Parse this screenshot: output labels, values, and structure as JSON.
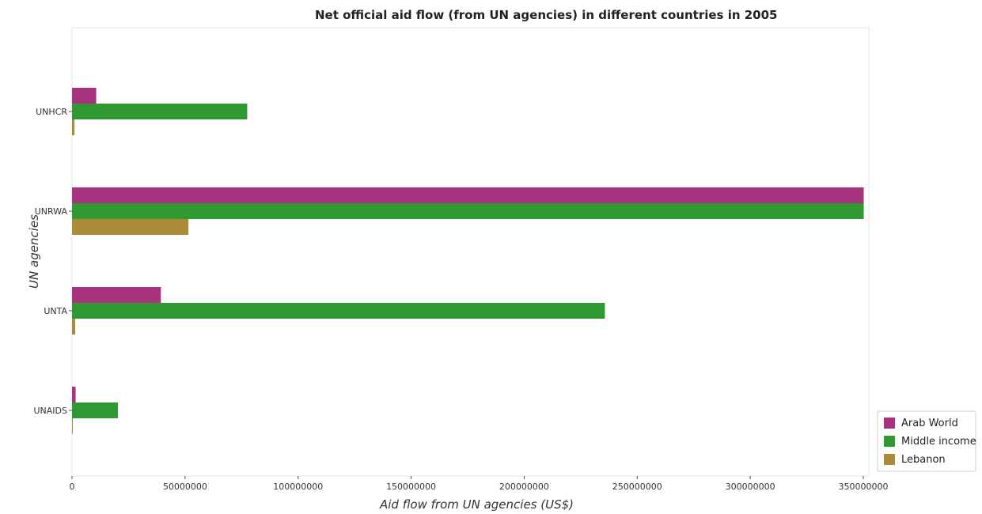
{
  "chart_data": {
    "type": "bar",
    "orientation": "horizontal",
    "title": "Net official aid flow (from UN agencies) in different countries in 2005",
    "xlabel": "Aid flow from UN agencies (US$)",
    "ylabel": "UN agencies",
    "categories": [
      "UNHCR",
      "UNRWA",
      "UNTA",
      "UNAIDS"
    ],
    "series": [
      {
        "name": "Arab World",
        "color": "#a8327e",
        "values": [
          10700000,
          350200000,
          39300000,
          1600000
        ]
      },
      {
        "name": "Middle income",
        "color": "#2f9a32",
        "values": [
          77500000,
          350200000,
          235700000,
          20300000
        ]
      },
      {
        "name": "Lebanon",
        "color": "#ab8a38",
        "values": [
          1100000,
          51500000,
          1400000,
          100000
        ]
      }
    ],
    "xticks": [
      0,
      50000000,
      100000000,
      150000000,
      200000000,
      250000000,
      300000000,
      350000000
    ],
    "xtick_labels": [
      "0",
      "50000000",
      "100000000",
      "150000000",
      "200000000",
      "250000000",
      "300000000",
      "350000000"
    ],
    "xlim": [
      0,
      367000000
    ],
    "grid": false,
    "legend_position": "bottom-right"
  }
}
